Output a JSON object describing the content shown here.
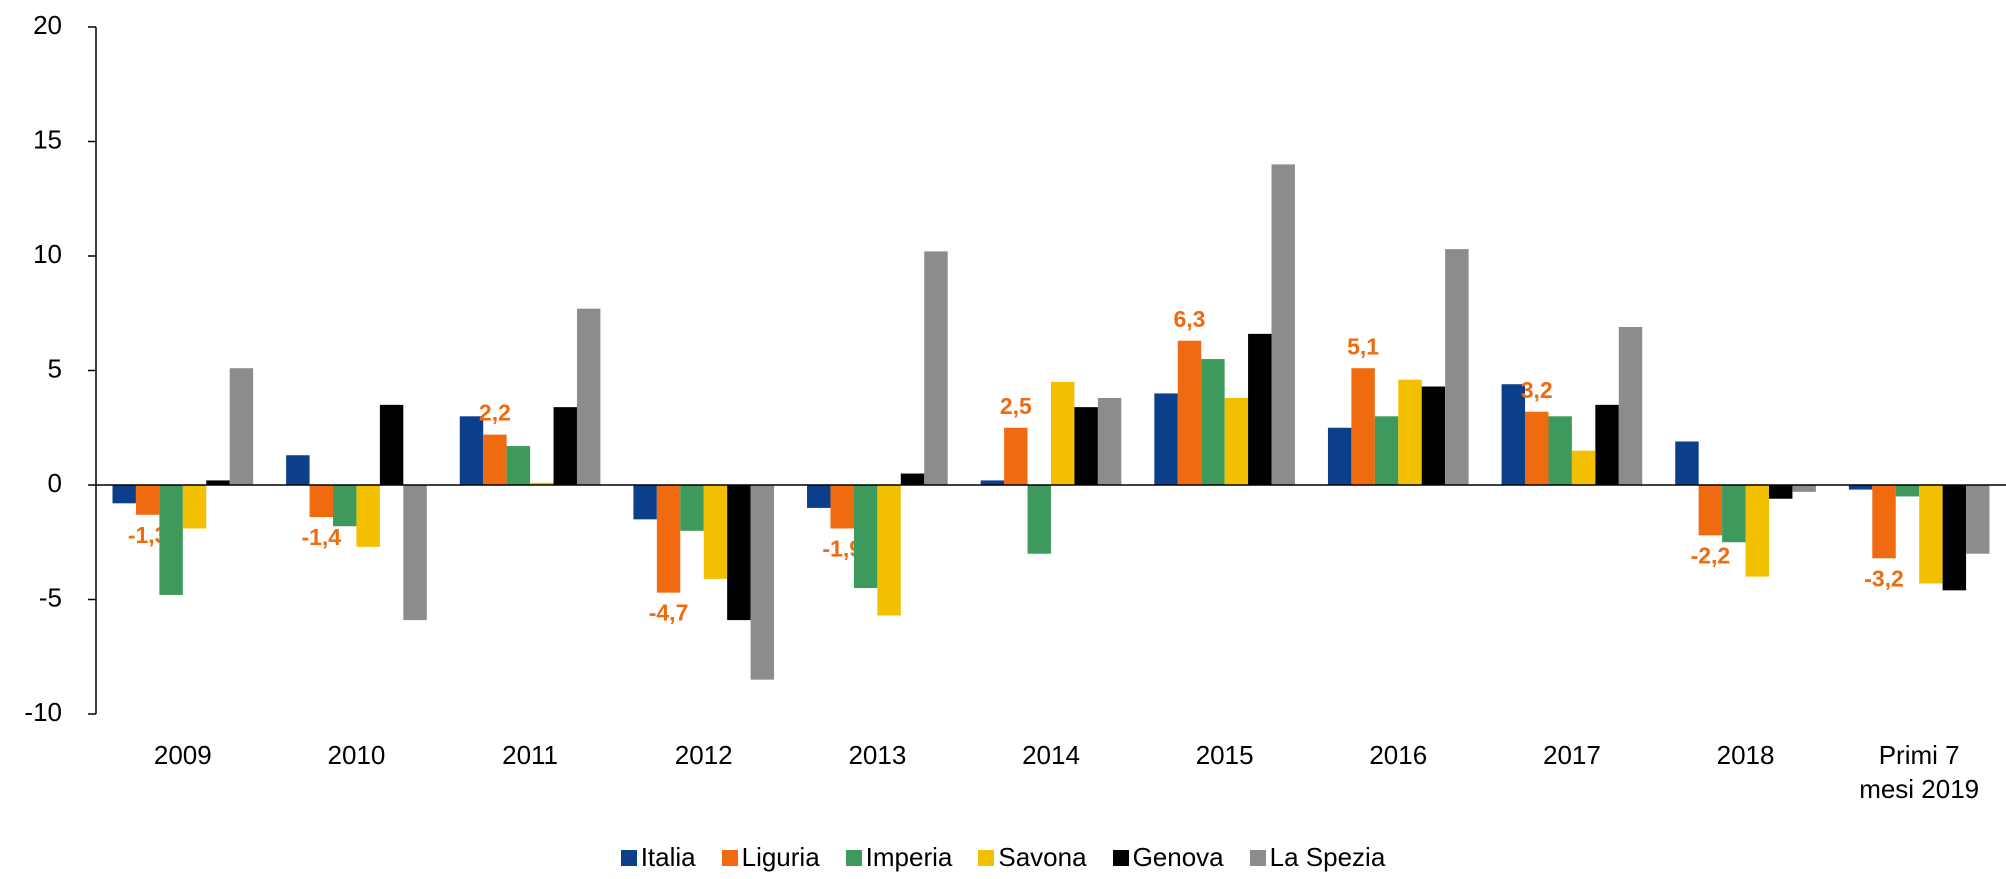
{
  "chart_data": {
    "type": "bar",
    "categories": [
      "2009",
      "2010",
      "2011",
      "2012",
      "2013",
      "2014",
      "2015",
      "2016",
      "2017",
      "2018",
      "Primi 7 mesi 2019"
    ],
    "series": [
      {
        "name": "Italia",
        "color": "#0b3f8c",
        "values": [
          -0.8,
          1.3,
          3.0,
          -1.5,
          -1.0,
          0.2,
          4.0,
          2.5,
          4.4,
          1.9,
          -0.2
        ]
      },
      {
        "name": "Liguria",
        "color": "#f06a10",
        "values": [
          -1.3,
          -1.4,
          2.2,
          -4.7,
          -1.9,
          2.5,
          6.3,
          5.1,
          3.2,
          -2.2,
          -3.2
        ],
        "value_labels": [
          "-1,3",
          "-1,4",
          "2,2",
          "-4,7",
          "-1,9",
          "2,5",
          "6,3",
          "5,1",
          "3,2",
          "-2,2",
          "-3,2"
        ]
      },
      {
        "name": "Imperia",
        "color": "#3d9a5c",
        "values": [
          -4.8,
          -1.8,
          1.7,
          -2.0,
          -4.5,
          -3.0,
          5.5,
          3.0,
          3.0,
          -2.5,
          -0.5
        ]
      },
      {
        "name": "Savona",
        "color": "#f2c000",
        "values": [
          -1.9,
          -2.7,
          0.1,
          -4.1,
          -5.7,
          4.5,
          3.8,
          4.6,
          1.5,
          -4.0,
          -4.3
        ]
      },
      {
        "name": "Genova",
        "color": "#000000",
        "values": [
          0.2,
          3.5,
          3.4,
          -5.9,
          0.5,
          3.4,
          6.6,
          4.3,
          3.5,
          -0.6,
          -4.6
        ]
      },
      {
        "name": "La Spezia",
        "color": "#8c8c8c",
        "values": [
          5.1,
          -5.9,
          7.7,
          -8.5,
          10.2,
          3.8,
          14.0,
          10.3,
          6.9,
          -0.3,
          -3.0
        ]
      }
    ],
    "ylim": [
      -10,
      20
    ],
    "yticks": [
      -10,
      -5,
      0,
      5,
      10,
      15,
      20
    ],
    "grid": false,
    "legend": "bottom"
  }
}
